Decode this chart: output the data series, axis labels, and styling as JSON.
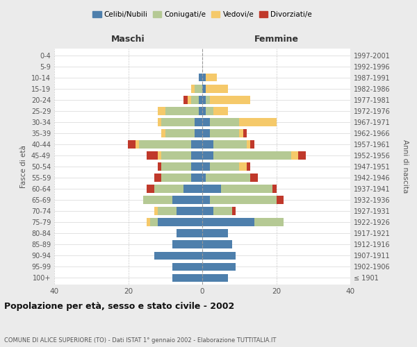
{
  "age_groups": [
    "100+",
    "95-99",
    "90-94",
    "85-89",
    "80-84",
    "75-79",
    "70-74",
    "65-69",
    "60-64",
    "55-59",
    "50-54",
    "45-49",
    "40-44",
    "35-39",
    "30-34",
    "25-29",
    "20-24",
    "15-19",
    "10-14",
    "5-9",
    "0-4"
  ],
  "birth_years": [
    "≤ 1901",
    "1902-1906",
    "1907-1911",
    "1912-1916",
    "1917-1921",
    "1922-1926",
    "1927-1931",
    "1932-1936",
    "1937-1941",
    "1942-1946",
    "1947-1951",
    "1952-1956",
    "1957-1961",
    "1962-1966",
    "1967-1971",
    "1972-1976",
    "1977-1981",
    "1982-1986",
    "1987-1991",
    "1992-1996",
    "1997-2001"
  ],
  "maschi_celibe": [
    0,
    0,
    1,
    0,
    1,
    1,
    2,
    2,
    3,
    3,
    3,
    3,
    5,
    8,
    7,
    12,
    7,
    8,
    13,
    8,
    8
  ],
  "maschi_coniugato": [
    0,
    0,
    0,
    2,
    2,
    9,
    9,
    8,
    14,
    8,
    8,
    8,
    8,
    8,
    5,
    2,
    0,
    0,
    0,
    0,
    0
  ],
  "maschi_vedovo": [
    0,
    0,
    0,
    1,
    1,
    2,
    1,
    1,
    1,
    1,
    0,
    0,
    0,
    0,
    1,
    1,
    0,
    0,
    0,
    0,
    0
  ],
  "maschi_divorziato": [
    0,
    0,
    0,
    0,
    1,
    0,
    0,
    0,
    2,
    3,
    1,
    2,
    2,
    0,
    0,
    0,
    0,
    0,
    0,
    0,
    0
  ],
  "femmine_nubile": [
    0,
    0,
    1,
    1,
    1,
    1,
    2,
    2,
    3,
    3,
    2,
    1,
    5,
    2,
    3,
    14,
    7,
    8,
    9,
    9,
    7
  ],
  "femmine_coniugata": [
    0,
    0,
    0,
    0,
    1,
    2,
    8,
    8,
    9,
    21,
    8,
    12,
    14,
    18,
    5,
    8,
    0,
    0,
    0,
    0,
    0
  ],
  "femmine_vedova": [
    0,
    0,
    3,
    6,
    11,
    4,
    10,
    1,
    1,
    2,
    2,
    0,
    0,
    0,
    0,
    0,
    0,
    0,
    0,
    0,
    0
  ],
  "femmine_divorziata": [
    0,
    0,
    0,
    0,
    0,
    0,
    0,
    1,
    1,
    2,
    1,
    2,
    1,
    2,
    1,
    0,
    0,
    0,
    0,
    0,
    0
  ],
  "color_celibe": "#4e7fac",
  "color_coniugato": "#b5c994",
  "color_vedovo": "#f5c96a",
  "color_divorziato": "#c0392b",
  "background_color": "#ebebeb",
  "plot_bg": "#ffffff",
  "title_main": "Popolazione per età, sesso e stato civile - 2002",
  "title_sub": "COMUNE DI ALICE SUPERIORE (TO) - Dati ISTAT 1° gennaio 2002 - Elaborazione TUTTITALIA.IT",
  "xlabel_left": "Maschi",
  "xlabel_right": "Femmine",
  "ylabel_left": "Fasce di età",
  "ylabel_right": "Anni di nascita",
  "xlim": 40,
  "legend_labels": [
    "Celibi/Nubili",
    "Coniugati/e",
    "Vedovi/e",
    "Divorziati/e"
  ]
}
